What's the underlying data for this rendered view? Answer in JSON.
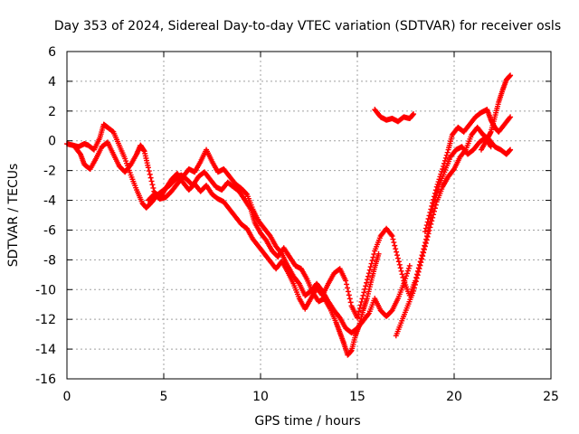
{
  "chart_data": {
    "type": "scatter",
    "title": "Day 353 of 2024, Sidereal Day-to-day VTEC variation (SDTVAR) for receiver osls",
    "xlabel": "GPS time / hours",
    "ylabel": "SDTVAR / TECUs",
    "xlim": [
      0,
      25
    ],
    "ylim": [
      -16,
      6
    ],
    "x_ticks": [
      0,
      5,
      10,
      15,
      20,
      25
    ],
    "y_ticks": [
      -16,
      -14,
      -12,
      -10,
      -8,
      -6,
      -4,
      -2,
      0,
      2,
      4,
      6
    ],
    "grid": true,
    "marker": "+",
    "marker_color": "#ff0000",
    "series": [
      {
        "points": [
          [
            0.0,
            -0.2
          ],
          [
            0.3,
            -0.3
          ],
          [
            0.6,
            -0.4
          ],
          [
            0.9,
            -0.2
          ],
          [
            1.1,
            -0.3
          ],
          [
            1.4,
            -0.6
          ],
          [
            1.7,
            0.2
          ],
          [
            1.9,
            1.1
          ],
          [
            2.1,
            0.9
          ],
          [
            2.4,
            0.6
          ],
          [
            2.7,
            -0.3
          ],
          [
            3.0,
            -1.2
          ],
          [
            3.3,
            -2.3
          ],
          [
            3.6,
            -3.3
          ],
          [
            3.9,
            -4.2
          ],
          [
            4.1,
            -4.5
          ],
          [
            4.4,
            -4.1
          ],
          [
            4.7,
            -3.6
          ],
          [
            5.0,
            -3.3
          ],
          [
            5.3,
            -3.0
          ],
          [
            5.6,
            -2.6
          ],
          [
            5.9,
            -2.3
          ],
          [
            6.2,
            -2.6
          ],
          [
            6.5,
            -3.0
          ],
          [
            6.8,
            -2.4
          ],
          [
            7.1,
            -2.1
          ],
          [
            7.4,
            -2.6
          ],
          [
            7.7,
            -3.1
          ],
          [
            8.0,
            -3.3
          ],
          [
            8.3,
            -2.8
          ],
          [
            8.6,
            -3.1
          ],
          [
            8.9,
            -3.4
          ],
          [
            9.2,
            -4.0
          ],
          [
            9.5,
            -4.6
          ],
          [
            9.7,
            -5.5
          ],
          [
            10.0,
            -6.2
          ],
          [
            10.3,
            -6.7
          ],
          [
            10.6,
            -7.4
          ],
          [
            10.9,
            -7.8
          ],
          [
            11.2,
            -7.2
          ],
          [
            11.5,
            -7.8
          ],
          [
            11.8,
            -8.4
          ],
          [
            12.1,
            -8.6
          ],
          [
            12.4,
            -9.3
          ],
          [
            12.7,
            -10.2
          ],
          [
            13.0,
            -10.8
          ],
          [
            13.3,
            -10.6
          ],
          [
            13.6,
            -11.3
          ],
          [
            13.9,
            -12.2
          ],
          [
            14.1,
            -12.9
          ],
          [
            14.3,
            -13.6
          ],
          [
            14.5,
            -14.4
          ],
          [
            14.7,
            -14.1
          ],
          [
            14.9,
            -13.1
          ],
          [
            15.1,
            -12.4
          ],
          [
            15.3,
            -11.4
          ],
          [
            15.5,
            -10.6
          ],
          [
            15.7,
            -9.5
          ],
          [
            15.9,
            -8.5
          ],
          [
            16.1,
            -7.6
          ]
        ]
      },
      {
        "points": [
          [
            0.4,
            -0.4
          ],
          [
            0.7,
            -0.9
          ],
          [
            0.9,
            -1.6
          ],
          [
            1.2,
            -1.9
          ],
          [
            1.5,
            -1.2
          ],
          [
            1.8,
            -0.4
          ],
          [
            2.1,
            -0.1
          ],
          [
            2.4,
            -0.9
          ],
          [
            2.7,
            -1.7
          ],
          [
            3.0,
            -2.1
          ],
          [
            3.3,
            -1.6
          ],
          [
            3.6,
            -0.9
          ],
          [
            3.8,
            -0.3
          ],
          [
            4.0,
            -0.7
          ],
          [
            4.2,
            -1.8
          ],
          [
            4.5,
            -3.4
          ],
          [
            4.8,
            -3.9
          ],
          [
            5.1,
            -3.8
          ],
          [
            5.4,
            -3.4
          ],
          [
            5.7,
            -2.9
          ],
          [
            6.0,
            -2.4
          ],
          [
            6.3,
            -1.9
          ],
          [
            6.6,
            -2.1
          ],
          [
            6.9,
            -1.4
          ],
          [
            7.2,
            -0.6
          ],
          [
            7.5,
            -1.4
          ],
          [
            7.8,
            -2.1
          ],
          [
            8.1,
            -1.9
          ],
          [
            8.4,
            -2.4
          ],
          [
            8.7,
            -2.9
          ],
          [
            9.0,
            -3.2
          ],
          [
            9.3,
            -3.6
          ],
          [
            9.6,
            -4.6
          ],
          [
            9.9,
            -5.4
          ],
          [
            10.2,
            -5.9
          ],
          [
            10.5,
            -6.4
          ],
          [
            10.8,
            -7.1
          ],
          [
            11.1,
            -7.6
          ],
          [
            11.4,
            -8.4
          ],
          [
            11.7,
            -9.1
          ],
          [
            12.0,
            -9.6
          ],
          [
            12.3,
            -10.4
          ],
          [
            12.6,
            -10.1
          ],
          [
            12.9,
            -9.6
          ],
          [
            13.2,
            -10.1
          ],
          [
            13.5,
            -10.8
          ],
          [
            13.8,
            -11.4
          ],
          [
            14.1,
            -11.9
          ],
          [
            14.4,
            -12.6
          ],
          [
            14.7,
            -12.9
          ],
          [
            15.0,
            -12.6
          ],
          [
            15.3,
            -12.1
          ],
          [
            15.6,
            -11.6
          ],
          [
            15.9,
            -10.6
          ],
          [
            16.2,
            -11.4
          ],
          [
            16.5,
            -11.8
          ],
          [
            16.8,
            -11.4
          ],
          [
            17.1,
            -10.6
          ],
          [
            17.4,
            -9.6
          ],
          [
            17.7,
            -8.4
          ]
        ]
      },
      {
        "points": [
          [
            4.2,
            -4.0
          ],
          [
            4.5,
            -3.6
          ],
          [
            4.8,
            -3.9
          ],
          [
            5.1,
            -3.2
          ],
          [
            5.4,
            -2.6
          ],
          [
            5.7,
            -2.2
          ],
          [
            6.0,
            -2.8
          ],
          [
            6.3,
            -3.3
          ],
          [
            6.6,
            -2.9
          ],
          [
            6.9,
            -3.4
          ],
          [
            7.2,
            -3.0
          ],
          [
            7.5,
            -3.6
          ],
          [
            7.8,
            -3.9
          ],
          [
            8.1,
            -4.1
          ],
          [
            8.4,
            -4.6
          ],
          [
            8.7,
            -5.1
          ],
          [
            9.0,
            -5.6
          ],
          [
            9.3,
            -5.9
          ],
          [
            9.6,
            -6.6
          ],
          [
            9.9,
            -7.1
          ],
          [
            10.2,
            -7.6
          ],
          [
            10.5,
            -8.1
          ],
          [
            10.8,
            -8.6
          ],
          [
            11.1,
            -8.1
          ],
          [
            11.4,
            -8.8
          ],
          [
            11.7,
            -9.6
          ],
          [
            12.0,
            -10.6
          ],
          [
            12.3,
            -11.3
          ],
          [
            12.6,
            -10.6
          ],
          [
            12.9,
            -9.9
          ],
          [
            13.2,
            -10.4
          ],
          [
            13.5,
            -9.6
          ],
          [
            13.8,
            -8.9
          ],
          [
            14.1,
            -8.6
          ],
          [
            14.4,
            -9.4
          ],
          [
            14.7,
            -11.1
          ],
          [
            15.0,
            -11.9
          ],
          [
            15.3,
            -10.4
          ],
          [
            15.6,
            -8.9
          ],
          [
            15.9,
            -7.4
          ],
          [
            16.2,
            -6.4
          ],
          [
            16.5,
            -5.9
          ],
          [
            16.8,
            -6.4
          ],
          [
            17.1,
            -7.9
          ],
          [
            17.4,
            -9.4
          ],
          [
            17.7,
            -10.4
          ],
          [
            18.0,
            -9.4
          ],
          [
            18.3,
            -7.9
          ],
          [
            18.6,
            -6.4
          ],
          [
            18.9,
            -4.4
          ],
          [
            19.2,
            -3.1
          ],
          [
            19.5,
            -2.1
          ],
          [
            19.8,
            -1.1
          ],
          [
            20.1,
            -0.6
          ],
          [
            20.4,
            -0.4
          ],
          [
            20.7,
            -0.9
          ],
          [
            21.0,
            -0.6
          ],
          [
            21.3,
            -0.1
          ],
          [
            21.6,
            0.2
          ],
          [
            21.9,
            -0.4
          ]
        ]
      },
      {
        "points": [
          [
            17.0,
            -13.1
          ],
          [
            17.3,
            -12.1
          ],
          [
            17.6,
            -11.1
          ],
          [
            17.9,
            -10.1
          ],
          [
            18.2,
            -8.6
          ],
          [
            18.5,
            -7.1
          ],
          [
            18.8,
            -5.6
          ],
          [
            19.1,
            -4.1
          ],
          [
            19.4,
            -3.1
          ],
          [
            19.7,
            -2.4
          ],
          [
            20.0,
            -1.9
          ],
          [
            20.3,
            -1.1
          ],
          [
            20.6,
            -0.6
          ],
          [
            20.9,
            0.4
          ],
          [
            21.2,
            0.9
          ],
          [
            21.5,
            0.4
          ],
          [
            21.8,
            0.1
          ],
          [
            22.1,
            -0.4
          ],
          [
            22.4,
            -0.6
          ],
          [
            22.7,
            -0.9
          ],
          [
            22.9,
            -0.6
          ]
        ]
      },
      {
        "points": [
          [
            18.5,
            -6.1
          ],
          [
            18.8,
            -4.6
          ],
          [
            19.1,
            -3.1
          ],
          [
            19.4,
            -1.9
          ],
          [
            19.7,
            -0.6
          ],
          [
            19.9,
            0.4
          ],
          [
            20.2,
            0.9
          ],
          [
            20.5,
            0.6
          ],
          [
            20.8,
            1.1
          ],
          [
            21.1,
            1.6
          ],
          [
            21.4,
            1.9
          ],
          [
            21.7,
            2.1
          ],
          [
            21.9,
            1.4
          ],
          [
            22.1,
            0.9
          ],
          [
            22.3,
            0.6
          ],
          [
            22.6,
            1.1
          ],
          [
            22.9,
            1.6
          ]
        ]
      },
      {
        "points": [
          [
            21.4,
            -0.6
          ],
          [
            21.7,
            0.1
          ],
          [
            21.9,
            0.6
          ],
          [
            22.1,
            1.6
          ],
          [
            22.3,
            2.6
          ],
          [
            22.5,
            3.4
          ],
          [
            22.7,
            4.1
          ],
          [
            22.9,
            4.4
          ]
        ]
      },
      {
        "points": [
          [
            15.9,
            2.1
          ],
          [
            16.2,
            1.6
          ],
          [
            16.5,
            1.4
          ],
          [
            16.8,
            1.5
          ],
          [
            17.1,
            1.3
          ],
          [
            17.4,
            1.6
          ],
          [
            17.7,
            1.5
          ],
          [
            17.9,
            1.8
          ]
        ]
      }
    ]
  }
}
